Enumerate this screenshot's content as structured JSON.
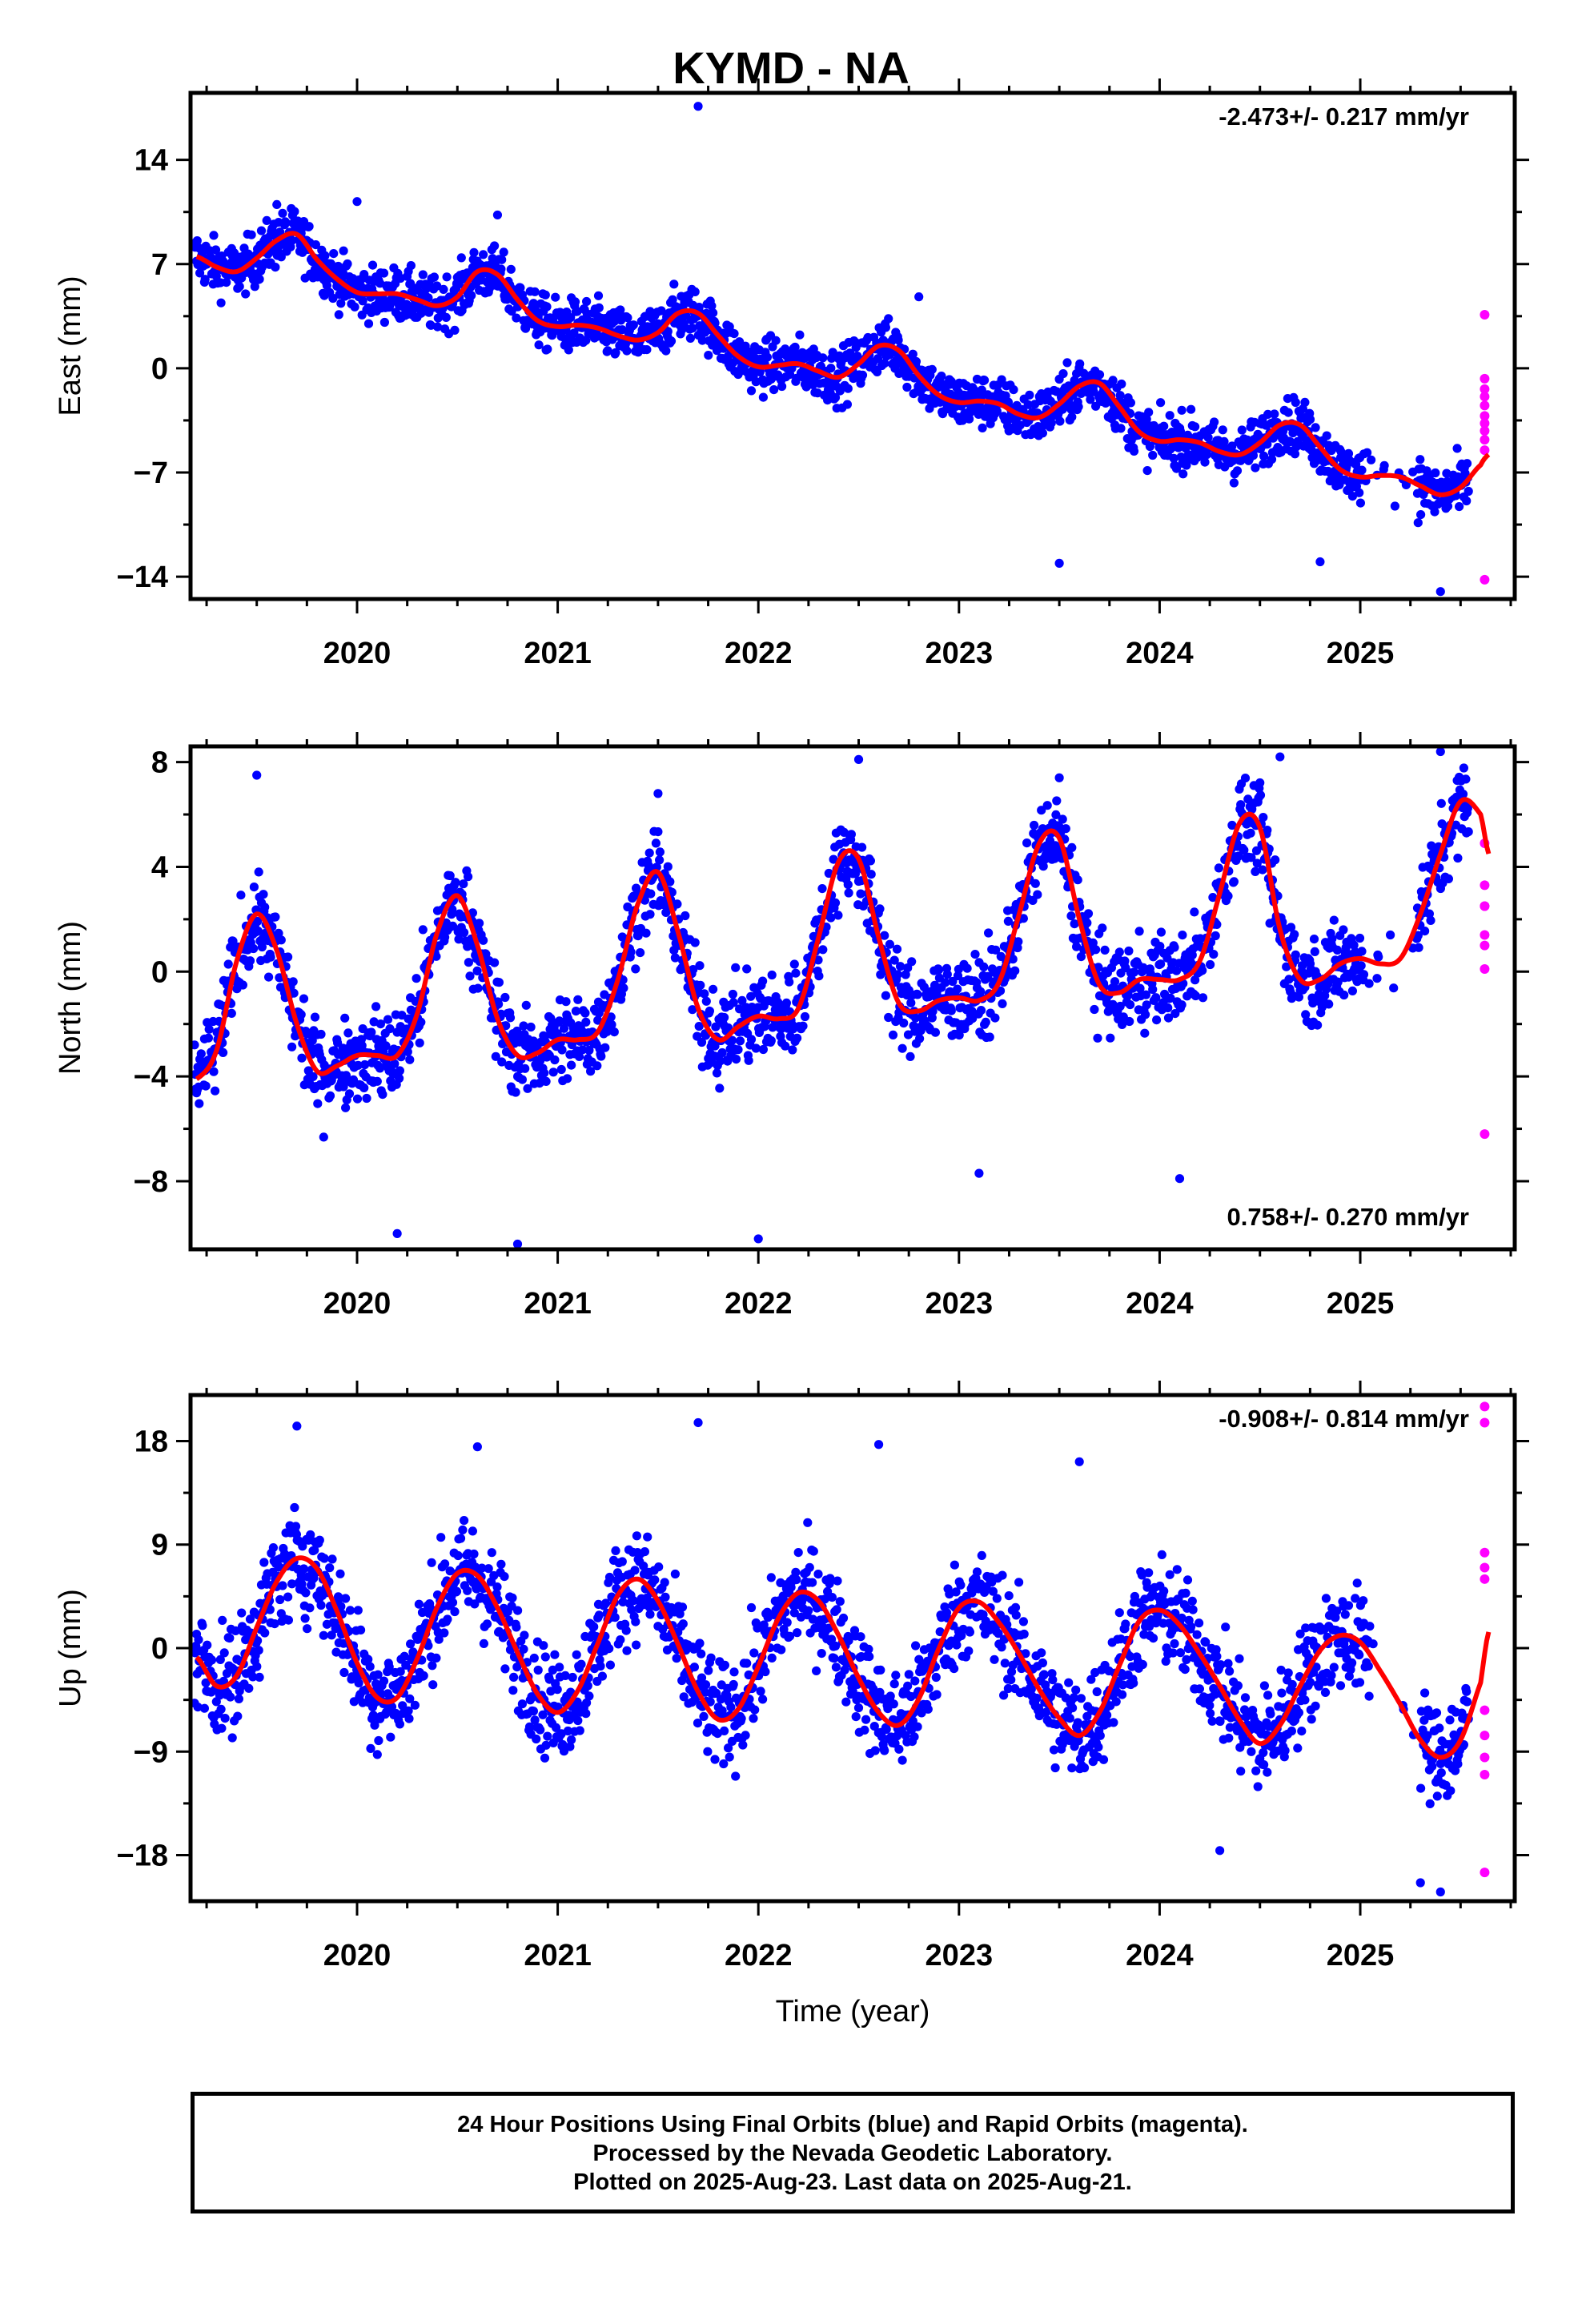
{
  "title": "KYMD - NA",
  "colors": {
    "final": "#0000ff",
    "rapid": "#ff00ff",
    "fit": "#ff0000",
    "frame": "#000000"
  },
  "footer": {
    "line1": "24 Hour Positions Using Final Orbits (blue) and Rapid Orbits (magenta).",
    "line2": "Processed by the Nevada Geodetic Laboratory.",
    "line3": "Plotted on 2025-Aug-23. Last data on 2025-Aug-21."
  },
  "chart_data": [
    {
      "type": "scatter",
      "ylabel": "East (mm)",
      "xlabel": "",
      "rate": "-2.473+/- 0.217 mm/yr",
      "rate_position": "top-right",
      "xlim": [
        2019.17,
        2025.77
      ],
      "ylim": [
        -15.5,
        18.5
      ],
      "yticks": [
        14,
        7,
        0,
        -7,
        -14
      ],
      "ytick_labels": [
        "14",
        "7",
        "0",
        "−7",
        "−14"
      ],
      "xticks": [
        2020,
        2021,
        2022,
        2023,
        2024,
        2025
      ],
      "xtick_labels": [
        "2020",
        "2021",
        "2022",
        "2023",
        "2024",
        "2025"
      ],
      "model": {
        "x": [
          2019.2,
          2019.3,
          2019.4,
          2019.5,
          2019.6,
          2019.7,
          2019.8,
          2019.9,
          2020.0,
          2020.1,
          2020.2,
          2020.3,
          2020.4,
          2020.5,
          2020.6,
          2020.7,
          2020.8,
          2020.9,
          2021.0,
          2021.1,
          2021.2,
          2021.3,
          2021.4,
          2021.5,
          2021.6,
          2021.7,
          2021.8,
          2021.9,
          2022.0,
          2022.1,
          2022.2,
          2022.3,
          2022.4,
          2022.5,
          2022.6,
          2022.7,
          2022.8,
          2022.9,
          2023.0,
          2023.1,
          2023.2,
          2023.3,
          2023.4,
          2023.5,
          2023.6,
          2023.7,
          2023.8,
          2023.9,
          2024.0,
          2024.1,
          2024.2,
          2024.3,
          2024.4,
          2024.5,
          2024.6,
          2024.7,
          2024.8,
          2024.9,
          2025.0,
          2025.1,
          2025.2,
          2025.3,
          2025.4,
          2025.5,
          2025.6,
          2025.64
        ],
        "y": [
          7.5,
          6.8,
          6.5,
          7.4,
          8.6,
          9.0,
          7.3,
          6.0,
          5.1,
          5.0,
          5.0,
          4.6,
          4.2,
          4.8,
          6.5,
          6.3,
          4.6,
          3.2,
          2.8,
          2.9,
          2.7,
          2.2,
          1.9,
          2.4,
          3.7,
          3.7,
          2.2,
          0.8,
          0.1,
          0.2,
          0.3,
          -0.2,
          -0.6,
          0.3,
          1.5,
          1.2,
          -0.5,
          -1.8,
          -2.3,
          -2.2,
          -2.4,
          -3.1,
          -3.3,
          -2.4,
          -1.2,
          -1.0,
          -2.6,
          -4.3,
          -4.9,
          -4.8,
          -5.0,
          -5.6,
          -5.8,
          -5.0,
          -3.8,
          -3.8,
          -5.3,
          -6.8,
          -7.3,
          -7.2,
          -7.3,
          -7.9,
          -8.5,
          -8.0,
          -6.5,
          -5.8
        ]
      },
      "rapid": {
        "x": [
          2025.62,
          2025.62,
          2025.62,
          2025.62,
          2025.62,
          2025.62,
          2025.62,
          2025.62,
          2025.62,
          2025.62,
          2025.62
        ],
        "y": [
          3.6,
          -0.7,
          -1.4,
          -1.9,
          -2.5,
          -3.2,
          -3.7,
          -4.2,
          -4.8,
          -5.5,
          -14.2
        ]
      },
      "outliers": {
        "x": [
          2019.6,
          2020.0,
          2020.7,
          2021.7,
          2022.8,
          2023.5,
          2024.8,
          2025.4
        ],
        "y": [
          11.0,
          11.2,
          10.3,
          17.6,
          4.8,
          -13.1,
          -13.0,
          -15.0
        ]
      }
    },
    {
      "type": "scatter",
      "ylabel": "North (mm)",
      "xlabel": "",
      "rate": "0.758+/- 0.270 mm/yr",
      "rate_position": "bottom-right",
      "xlim": [
        2019.17,
        2025.77
      ],
      "ylim": [
        -10.6,
        8.6
      ],
      "yticks": [
        8,
        4,
        0,
        -4,
        -8
      ],
      "ytick_labels": [
        "8",
        "4",
        "0",
        "−4",
        "−8"
      ],
      "xticks": [
        2020,
        2021,
        2022,
        2023,
        2024,
        2025
      ],
      "xtick_labels": [
        "2020",
        "2021",
        "2022",
        "2023",
        "2024",
        "2025"
      ],
      "model": {
        "x": [
          2019.2,
          2019.3,
          2019.4,
          2019.5,
          2019.6,
          2019.7,
          2019.8,
          2019.9,
          2020.0,
          2020.1,
          2020.2,
          2020.3,
          2020.4,
          2020.5,
          2020.6,
          2020.7,
          2020.8,
          2020.9,
          2021.0,
          2021.1,
          2021.2,
          2021.3,
          2021.4,
          2021.5,
          2021.6,
          2021.7,
          2021.8,
          2021.9,
          2022.0,
          2022.1,
          2022.2,
          2022.3,
          2022.4,
          2022.5,
          2022.6,
          2022.7,
          2022.8,
          2022.9,
          2023.0,
          2023.1,
          2023.2,
          2023.3,
          2023.4,
          2023.5,
          2023.6,
          2023.7,
          2023.8,
          2023.9,
          2024.0,
          2024.1,
          2024.2,
          2024.3,
          2024.4,
          2024.5,
          2024.6,
          2024.7,
          2024.8,
          2024.9,
          2025.0,
          2025.1,
          2025.2,
          2025.3,
          2025.4,
          2025.5,
          2025.6,
          2025.64
        ],
        "y": [
          -4.1,
          -3.0,
          0.4,
          2.2,
          0.8,
          -2.0,
          -3.8,
          -3.6,
          -3.2,
          -3.2,
          -3.2,
          -1.6,
          1.5,
          2.9,
          1.0,
          -1.8,
          -3.2,
          -3.1,
          -2.6,
          -2.6,
          -2.3,
          -0.3,
          2.6,
          3.8,
          1.5,
          -1.4,
          -2.6,
          -2.1,
          -1.7,
          -1.8,
          -1.4,
          1.3,
          4.2,
          4.3,
          1.3,
          -1.2,
          -1.5,
          -1.1,
          -1.0,
          -1.1,
          -0.4,
          2.2,
          4.9,
          5.1,
          2.0,
          -0.5,
          -0.8,
          -0.3,
          -0.3,
          -0.3,
          0.4,
          3.0,
          5.7,
          5.5,
          1.6,
          -0.3,
          -0.3,
          0.3,
          0.5,
          0.3,
          0.5,
          2.2,
          4.5,
          6.5,
          6.0,
          4.5
        ]
      },
      "rapid": {
        "x": [
          2025.62,
          2025.62,
          2025.62,
          2025.62,
          2025.62,
          2025.62,
          2025.62,
          2025.62
        ],
        "y": [
          4.9,
          3.3,
          2.5,
          2.5,
          1.4,
          1.0,
          0.1,
          -6.2
        ]
      },
      "outliers": {
        "x": [
          2019.5,
          2020.2,
          2020.8,
          2021.5,
          2022.0,
          2022.5,
          2023.1,
          2023.5,
          2024.1,
          2024.6,
          2025.4
        ],
        "y": [
          7.5,
          -10.0,
          -10.4,
          6.8,
          -10.2,
          8.1,
          -7.7,
          7.4,
          -7.9,
          8.2,
          8.4
        ]
      }
    },
    {
      "type": "scatter",
      "ylabel": "Up (mm)",
      "xlabel": "Time (year)",
      "rate": "-0.908+/- 0.814 mm/yr",
      "rate_position": "top-right",
      "xlim": [
        2019.17,
        2025.77
      ],
      "ylim": [
        -22,
        22
      ],
      "yticks": [
        18,
        9,
        0,
        -9,
        -18
      ],
      "ytick_labels": [
        "18",
        "9",
        "0",
        "−9",
        "−18"
      ],
      "xticks": [
        2020,
        2021,
        2022,
        2023,
        2024,
        2025
      ],
      "xtick_labels": [
        "2020",
        "2021",
        "2022",
        "2023",
        "2024",
        "2025"
      ],
      "model": {
        "x": [
          2019.2,
          2019.3,
          2019.4,
          2019.5,
          2019.6,
          2019.7,
          2019.8,
          2019.9,
          2020.0,
          2020.1,
          2020.2,
          2020.3,
          2020.4,
          2020.5,
          2020.6,
          2020.7,
          2020.8,
          2020.9,
          2021.0,
          2021.1,
          2021.2,
          2021.3,
          2021.4,
          2021.5,
          2021.6,
          2021.7,
          2021.8,
          2021.9,
          2022.0,
          2022.1,
          2022.2,
          2022.3,
          2022.4,
          2022.5,
          2022.6,
          2022.7,
          2022.8,
          2022.9,
          2023.0,
          2023.1,
          2023.2,
          2023.3,
          2023.4,
          2023.5,
          2023.6,
          2023.7,
          2023.8,
          2023.9,
          2024.0,
          2024.1,
          2024.2,
          2024.3,
          2024.4,
          2024.5,
          2024.6,
          2024.7,
          2024.8,
          2024.9,
          2025.0,
          2025.1,
          2025.2,
          2025.3,
          2025.4,
          2025.5,
          2025.6,
          2025.64
        ],
        "y": [
          -0.8,
          -3.3,
          -2.4,
          1.8,
          5.8,
          7.8,
          6.9,
          3.2,
          -1.3,
          -4.3,
          -4.3,
          -0.9,
          3.6,
          6.5,
          6.3,
          3.5,
          -0.4,
          -4.0,
          -5.6,
          -3.7,
          0.4,
          4.6,
          6.0,
          4.1,
          0.3,
          -3.8,
          -6.2,
          -5.3,
          -1.6,
          2.6,
          4.8,
          4.1,
          1.1,
          -2.6,
          -5.6,
          -6.7,
          -4.4,
          0.0,
          3.5,
          4.0,
          2.2,
          -0.5,
          -3.6,
          -6.1,
          -7.6,
          -5.6,
          -1.5,
          2.4,
          3.3,
          2.0,
          -0.5,
          -3.3,
          -6.3,
          -8.3,
          -6.7,
          -3.3,
          -0.2,
          1.1,
          0.5,
          -2.0,
          -4.9,
          -8.0,
          -9.5,
          -8.0,
          -3.0,
          1.4
        ]
      },
      "rapid": {
        "x": [
          2025.62,
          2025.62,
          2025.62,
          2025.62,
          2025.62,
          2025.62,
          2025.62,
          2025.62,
          2025.62,
          2025.62
        ],
        "y": [
          21.0,
          19.6,
          8.3,
          7.0,
          6.0,
          -5.4,
          -7.6,
          -9.5,
          -11.0,
          -19.5
        ]
      },
      "outliers": {
        "x": [
          2019.7,
          2020.6,
          2021.7,
          2022.6,
          2023.6,
          2024.3,
          2025.3,
          2025.4
        ],
        "y": [
          19.3,
          17.5,
          19.6,
          17.7,
          16.2,
          -17.6,
          -20.4,
          -21.2
        ]
      }
    }
  ]
}
